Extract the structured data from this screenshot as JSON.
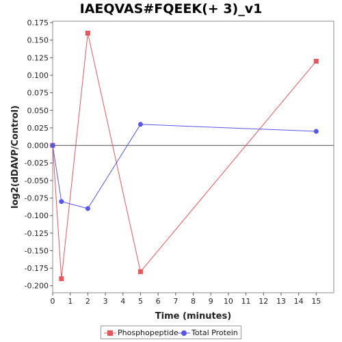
{
  "chart_data": {
    "type": "line",
    "title": "IAEQVAS#FQEEK(+ 3)_v1",
    "xlabel": "Time (minutes)",
    "ylabel": "log2(dDAVP/Control)",
    "xlim": [
      0,
      16
    ],
    "ylim": [
      -0.21,
      0.177
    ],
    "xticks": [
      0,
      1,
      2,
      3,
      4,
      5,
      6,
      7,
      8,
      9,
      10,
      11,
      12,
      13,
      14,
      15
    ],
    "yticks": [
      -0.2,
      -0.175,
      -0.15,
      -0.125,
      -0.1,
      -0.075,
      -0.05,
      -0.025,
      0.0,
      0.025,
      0.05,
      0.075,
      0.1,
      0.125,
      0.15,
      0.175
    ],
    "ytick_labels": [
      "-0.200",
      "-0.175",
      "-0.150",
      "-0.125",
      "-0.100",
      "-0.075",
      "-0.050",
      "-0.025",
      "0.000",
      "0.025",
      "0.050",
      "0.075",
      "0.100",
      "0.125",
      "0.150",
      "0.175"
    ],
    "zero_line": true,
    "grid": false,
    "legend_position": "bottom",
    "series": [
      {
        "name": "Phosphopeptide",
        "color": "#e8555a",
        "marker": "square",
        "x": [
          0,
          0.5,
          2,
          5,
          15
        ],
        "y": [
          0.0,
          -0.19,
          0.16,
          -0.18,
          0.12
        ]
      },
      {
        "name": "Total Protein",
        "color": "#5555e8",
        "marker": "circle",
        "x": [
          0,
          0.5,
          2,
          5,
          15
        ],
        "y": [
          0.0,
          -0.08,
          -0.09,
          0.03,
          0.02
        ]
      }
    ]
  }
}
